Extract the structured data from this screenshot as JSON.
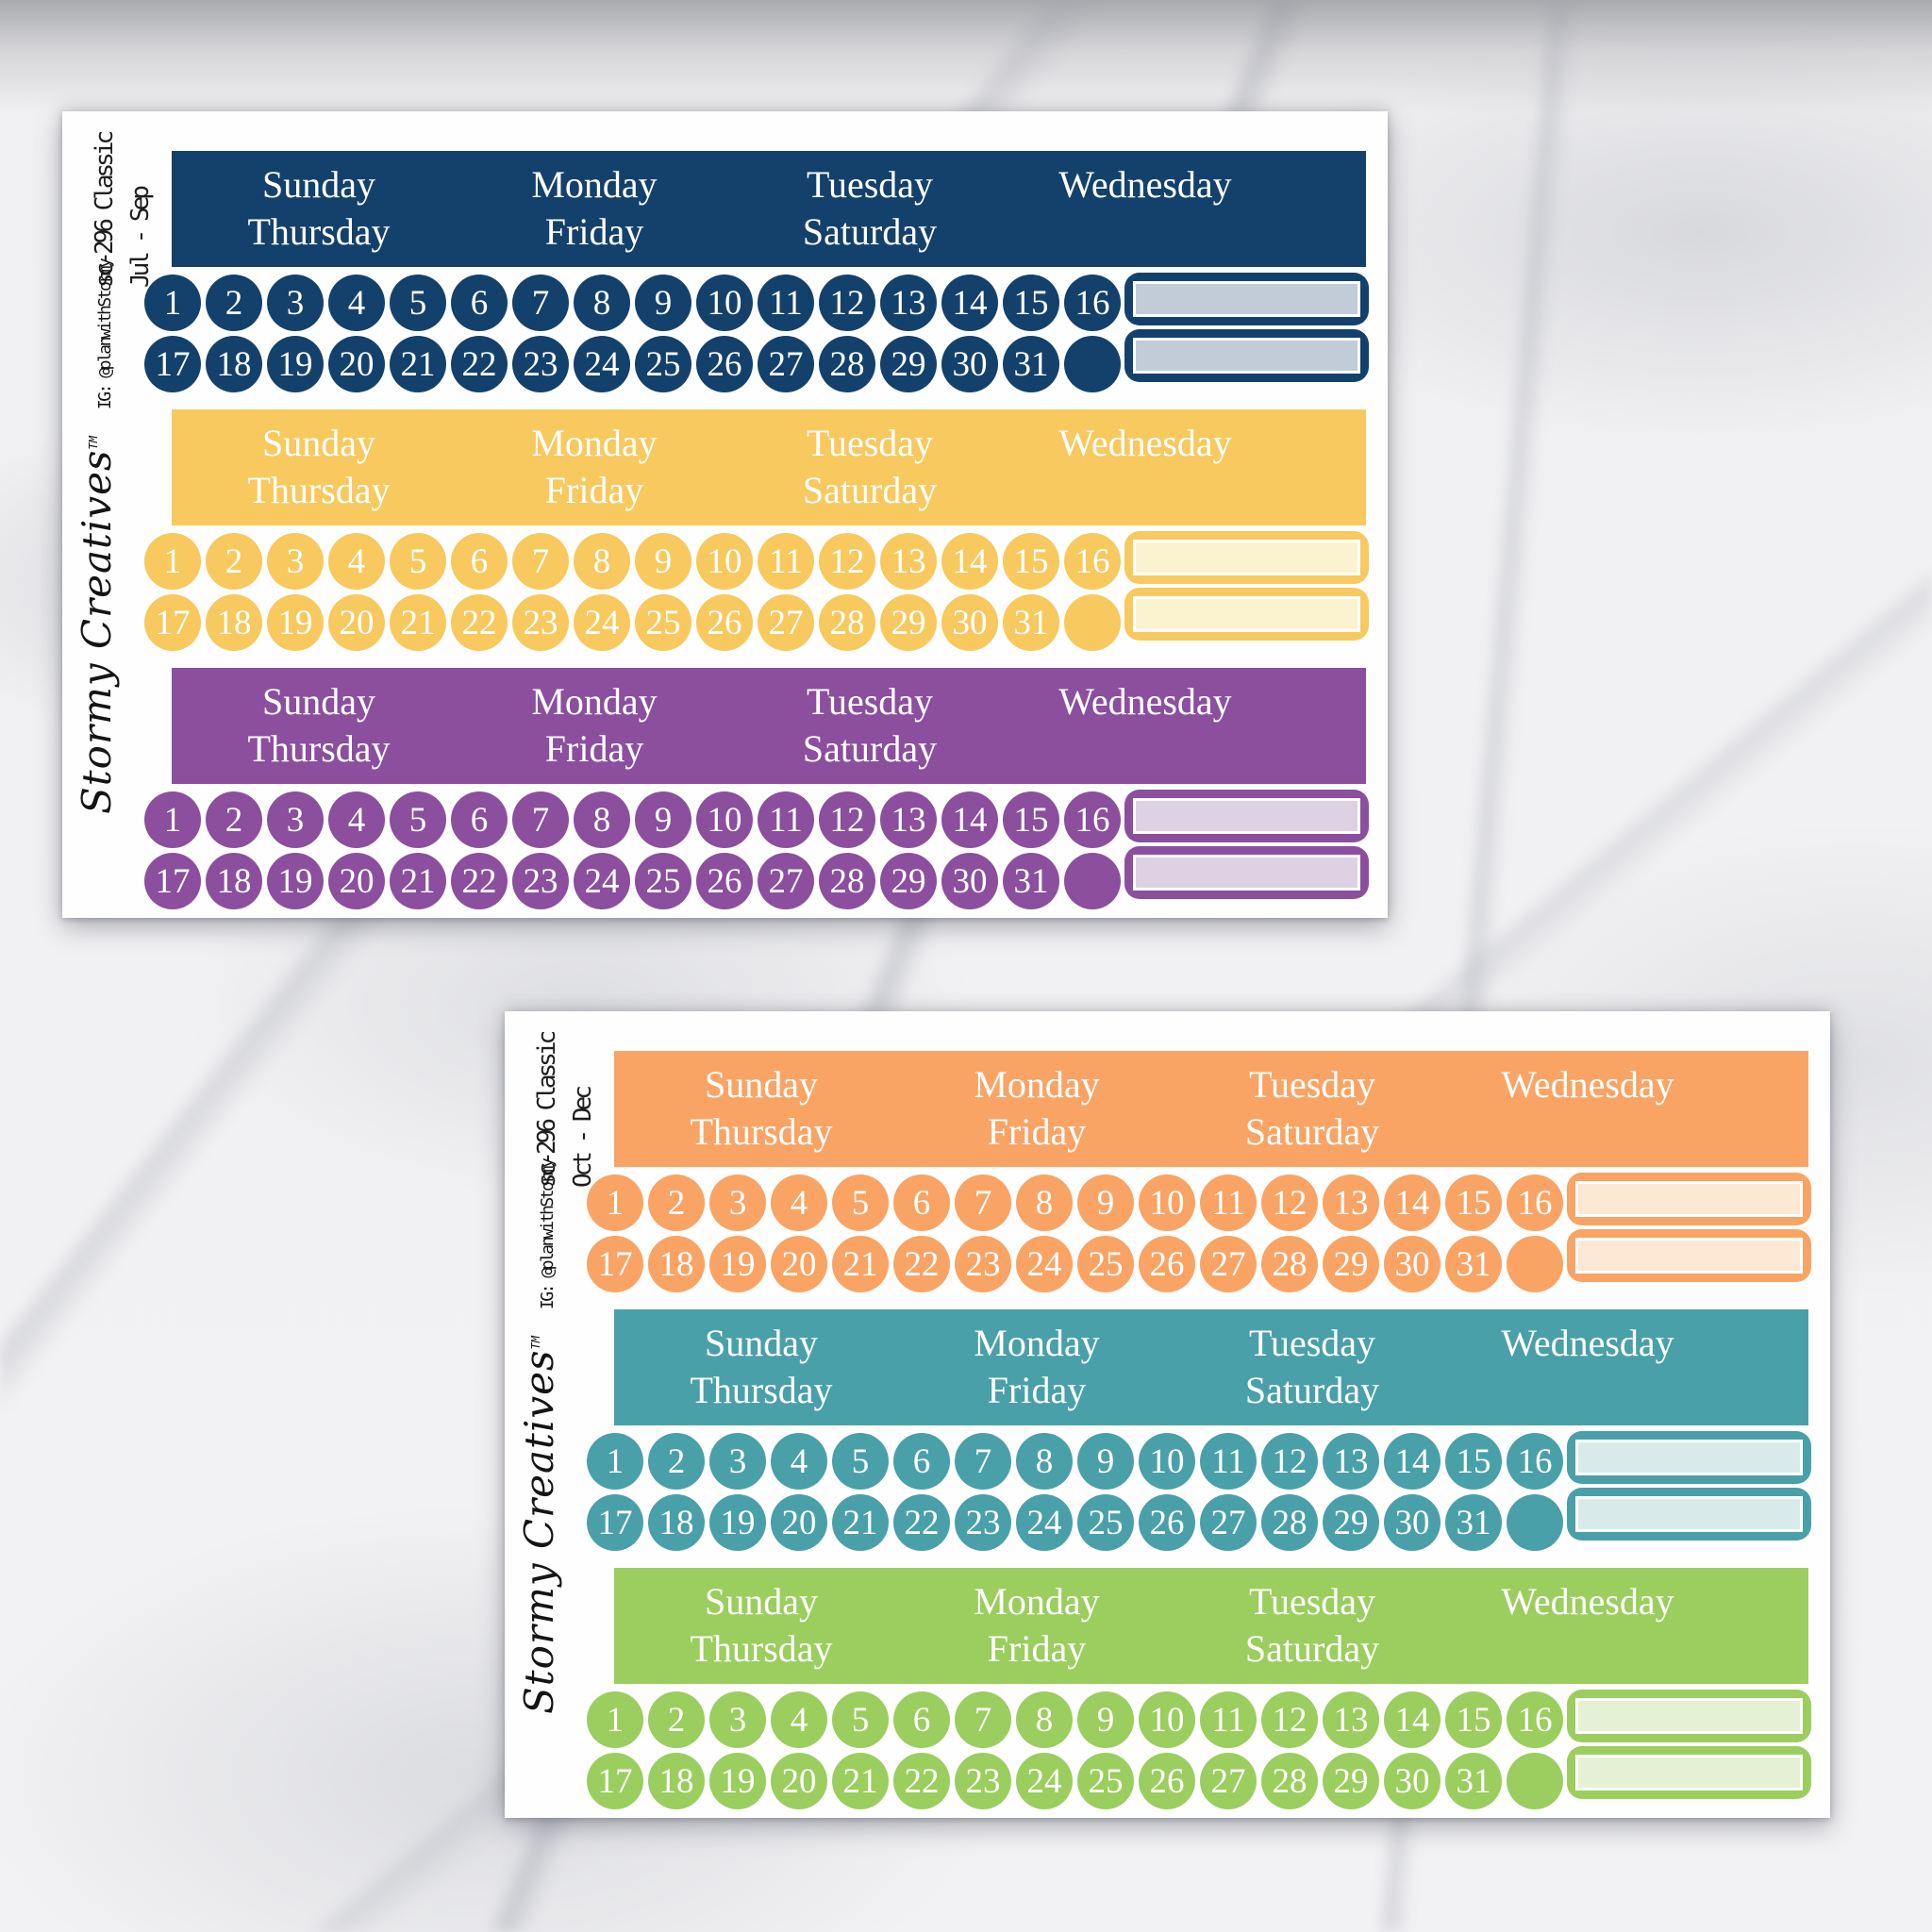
{
  "background": {
    "style": "white-grey marble surface"
  },
  "brand": {
    "signature": "Stormy Creatives",
    "trademark": "TM",
    "instagram": "IG: @planwithStormy"
  },
  "day_columns": [
    {
      "top": "Sunday",
      "bottom": "Thursday"
    },
    {
      "top": "Monday",
      "bottom": "Friday"
    },
    {
      "top": "Tuesday",
      "bottom": "Saturday"
    },
    {
      "top": "Wednesday",
      "bottom": ""
    }
  ],
  "dates_row1": [
    "1",
    "2",
    "3",
    "4",
    "5",
    "6",
    "7",
    "8",
    "9",
    "10",
    "11",
    "12",
    "13",
    "14",
    "15",
    "16"
  ],
  "dates_row2": [
    "17",
    "18",
    "19",
    "20",
    "21",
    "22",
    "23",
    "24",
    "25",
    "26",
    "27",
    "28",
    "29",
    "30",
    "31",
    ""
  ],
  "sheets": [
    {
      "code": "sc-296 Classic",
      "range": "Jul - Sep",
      "sections": [
        {
          "name": "navy",
          "color": "#14416b",
          "box_fill": "#c2ccd8"
        },
        {
          "name": "yellow",
          "color": "#f7c95f",
          "box_fill": "#fbf2d0"
        },
        {
          "name": "purple",
          "color": "#8b4f9e",
          "box_fill": "#ded1e4"
        }
      ]
    },
    {
      "code": "sc-296 Classic",
      "range": "Oct - Dec",
      "sections": [
        {
          "name": "orange",
          "color": "#f9a465",
          "box_fill": "#fde8d4"
        },
        {
          "name": "teal",
          "color": "#4aa0a9",
          "box_fill": "#d9eaea"
        },
        {
          "name": "green",
          "color": "#9bce5e",
          "box_fill": "#e4f1d5"
        }
      ]
    }
  ]
}
